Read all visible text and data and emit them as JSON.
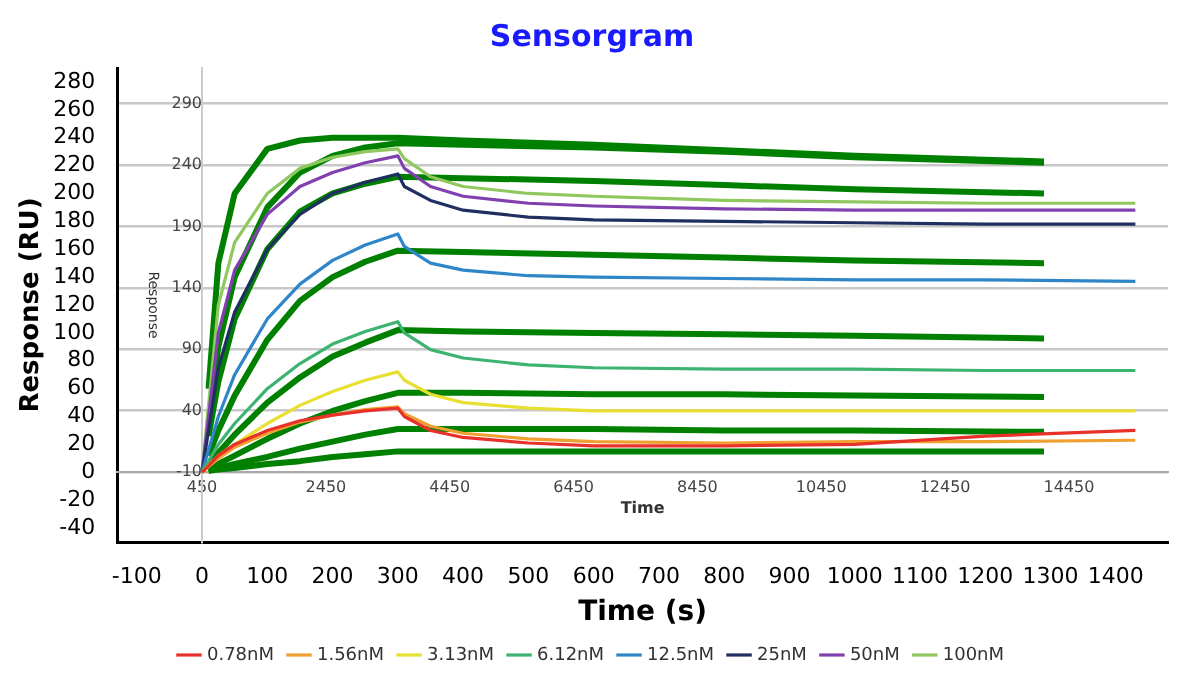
{
  "chart_data": {
    "type": "line",
    "title": "Sensorgram",
    "xlabel": "Time (s)",
    "ylabel": "Response (RU)",
    "x2label": "Time",
    "y2label": "Response",
    "xlim": [
      -130,
      1480
    ],
    "xticks": [
      -100,
      0,
      100,
      200,
      300,
      400,
      500,
      600,
      700,
      800,
      900,
      1000,
      1100,
      1200,
      1300,
      1400
    ],
    "ylim": [
      -50,
      290
    ],
    "yticks": [
      -40,
      -20,
      0,
      20,
      40,
      60,
      80,
      100,
      120,
      140,
      160,
      180,
      200,
      220,
      240,
      260,
      280
    ],
    "x2lim": [
      -920,
      16050
    ],
    "x2ticks": [
      450,
      2450,
      4450,
      6450,
      8450,
      10450,
      12450,
      14450
    ],
    "y2lim": [
      -67,
      319
    ],
    "y2ticks": [
      -10,
      40,
      90,
      140,
      190,
      240,
      290
    ],
    "grid": "y2",
    "legend": "bottom",
    "marker": "none",
    "line_style": "solid",
    "series": [
      {
        "name": "0.78nM",
        "color": "#e8312a",
        "x": [
          0,
          25,
          50,
          100,
          150,
          200,
          250,
          300,
          310,
          350,
          400,
          500,
          600,
          800,
          1000,
          1200,
          1430
        ],
        "values": [
          0,
          12,
          20,
          30,
          37,
          41,
          44,
          46,
          40,
          30,
          25,
          21,
          19,
          19,
          20,
          26,
          30
        ]
      },
      {
        "name": "1.56nM",
        "color": "#f0a030",
        "x": [
          0,
          25,
          50,
          100,
          150,
          200,
          250,
          300,
          310,
          350,
          400,
          500,
          600,
          800,
          1000,
          1200,
          1430
        ],
        "values": [
          0,
          10,
          18,
          28,
          36,
          41,
          45,
          47,
          42,
          33,
          28,
          24,
          22,
          21,
          22,
          22,
          23
        ]
      },
      {
        "name": "3.13nM",
        "color": "#e8e030",
        "x": [
          0,
          25,
          50,
          100,
          150,
          200,
          250,
          300,
          310,
          350,
          400,
          500,
          600,
          800,
          1000,
          1200,
          1430
        ],
        "values": [
          0,
          12,
          20,
          35,
          48,
          58,
          66,
          72,
          66,
          56,
          50,
          46,
          44,
          44,
          44,
          44,
          44
        ]
      },
      {
        "name": "6.12nM",
        "color": "#3cb371",
        "x": [
          0,
          25,
          50,
          100,
          150,
          200,
          250,
          300,
          310,
          350,
          400,
          500,
          600,
          800,
          1000,
          1200,
          1430
        ],
        "values": [
          0,
          20,
          35,
          60,
          78,
          92,
          101,
          108,
          100,
          88,
          82,
          77,
          75,
          74,
          74,
          73,
          73
        ]
      },
      {
        "name": "12.5nM",
        "color": "#2e86c8",
        "x": [
          0,
          25,
          50,
          100,
          150,
          200,
          250,
          300,
          310,
          350,
          400,
          500,
          600,
          800,
          1000,
          1200,
          1430
        ],
        "values": [
          0,
          40,
          70,
          110,
          135,
          152,
          163,
          171,
          162,
          150,
          145,
          141,
          140,
          139,
          138,
          138,
          137
        ]
      },
      {
        "name": "25nM",
        "color": "#1f3060",
        "x": [
          0,
          25,
          50,
          100,
          150,
          200,
          250,
          300,
          310,
          350,
          400,
          500,
          600,
          800,
          1000,
          1200,
          1430
        ],
        "values": [
          0,
          75,
          115,
          160,
          185,
          200,
          208,
          214,
          205,
          195,
          188,
          183,
          181,
          180,
          179,
          178,
          178
        ]
      },
      {
        "name": "50nM",
        "color": "#8040b0",
        "x": [
          0,
          25,
          50,
          100,
          150,
          200,
          250,
          300,
          310,
          350,
          400,
          500,
          600,
          800,
          1000,
          1200,
          1430
        ],
        "values": [
          0,
          100,
          145,
          185,
          205,
          215,
          222,
          227,
          218,
          205,
          198,
          193,
          191,
          189,
          188,
          188,
          188
        ]
      },
      {
        "name": "100nM",
        "color": "#90c860",
        "x": [
          0,
          25,
          50,
          100,
          150,
          200,
          250,
          300,
          310,
          350,
          400,
          500,
          600,
          800,
          1000,
          1200,
          1430
        ],
        "values": [
          0,
          120,
          165,
          200,
          218,
          226,
          230,
          232,
          225,
          212,
          205,
          200,
          198,
          195,
          194,
          193,
          193
        ]
      },
      {
        "color": "#008000",
        "x": [
          10,
          25,
          50,
          100,
          150,
          200,
          250,
          300,
          400,
          600,
          800,
          1000,
          1290
        ],
        "values": [
          60,
          150,
          200,
          232,
          238,
          240,
          240,
          240,
          238,
          235,
          231,
          227,
          223
        ]
      },
      {
        "color": "#008000",
        "x": [
          10,
          25,
          50,
          100,
          150,
          200,
          250,
          300,
          400,
          600,
          800,
          1000,
          1290
        ],
        "values": [
          36,
          90,
          140,
          190,
          215,
          227,
          233,
          236,
          235,
          233,
          230,
          226,
          222
        ]
      },
      {
        "color": "#008000",
        "x": [
          10,
          25,
          50,
          100,
          150,
          200,
          250,
          300,
          400,
          600,
          800,
          1000,
          1290
        ],
        "values": [
          26,
          65,
          110,
          160,
          187,
          200,
          207,
          212,
          211,
          209,
          206,
          203,
          200
        ]
      },
      {
        "color": "#008000",
        "x": [
          10,
          25,
          50,
          100,
          150,
          200,
          250,
          300,
          400,
          600,
          800,
          1000,
          1290
        ],
        "values": [
          12,
          30,
          55,
          95,
          123,
          140,
          151,
          159,
          158,
          156,
          154,
          152,
          150
        ]
      },
      {
        "color": "#008000",
        "x": [
          10,
          25,
          50,
          100,
          150,
          200,
          250,
          300,
          400,
          600,
          800,
          1000,
          1290
        ],
        "values": [
          6,
          14,
          27,
          50,
          68,
          83,
          93,
          102,
          101,
          100,
          99,
          98,
          96
        ]
      },
      {
        "color": "#008000",
        "x": [
          10,
          25,
          50,
          100,
          150,
          200,
          250,
          300,
          400,
          600,
          800,
          1000,
          1290
        ],
        "values": [
          3,
          6,
          12,
          24,
          35,
          44,
          51,
          57,
          57,
          56,
          56,
          55,
          54
        ]
      },
      {
        "color": "#008000",
        "x": [
          10,
          25,
          50,
          100,
          150,
          200,
          250,
          300,
          400,
          600,
          800,
          1000,
          1290
        ],
        "values": [
          1,
          3,
          6,
          11,
          17,
          22,
          27,
          31,
          31,
          31,
          30,
          30,
          29
        ]
      },
      {
        "color": "#008000",
        "x": [
          10,
          25,
          50,
          100,
          150,
          200,
          250,
          300,
          400,
          600,
          800,
          1000,
          1290
        ],
        "values": [
          1,
          2,
          3,
          6,
          8,
          11,
          13,
          15,
          15,
          15,
          15,
          15,
          15
        ]
      }
    ]
  }
}
